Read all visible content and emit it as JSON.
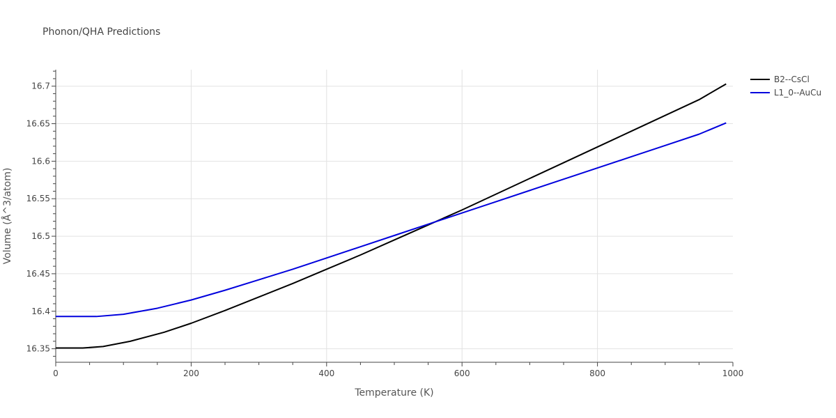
{
  "chart_data": {
    "type": "line",
    "title": "Phonon/QHA Predictions",
    "xlabel": "Temperature (K)",
    "ylabel": "Volume (Å^3/atom)",
    "xlim": [
      0,
      1000
    ],
    "ylim": [
      16.332,
      16.722
    ],
    "xticks": [
      0,
      200,
      400,
      600,
      800,
      1000
    ],
    "xtick_labels": [
      "0",
      "200",
      "400",
      "600",
      "800",
      "1000"
    ],
    "yticks": [
      16.35,
      16.4,
      16.45,
      16.5,
      16.55,
      16.6,
      16.65,
      16.7
    ],
    "ytick_labels": [
      "16.35",
      "16.4",
      "16.45",
      "16.5",
      "16.55",
      "16.6",
      "16.65",
      "16.7"
    ],
    "grid": true,
    "legend_position": "top-right",
    "series": [
      {
        "name": "B2--CsCl",
        "color": "#000000",
        "x": [
          0,
          40,
          70,
          110,
          160,
          200,
          250,
          300,
          350,
          400,
          450,
          500,
          550,
          600,
          650,
          700,
          750,
          800,
          850,
          900,
          950,
          990
        ],
        "y": [
          16.351,
          16.351,
          16.353,
          16.36,
          16.372,
          16.384,
          16.401,
          16.419,
          16.437,
          16.456,
          16.475,
          16.495,
          16.515,
          16.535,
          16.556,
          16.577,
          16.598,
          16.619,
          16.64,
          16.661,
          16.682,
          16.703
        ]
      },
      {
        "name": "L1_0--AuCu",
        "color": "#0000dd",
        "x": [
          0,
          60,
          100,
          150,
          200,
          250,
          300,
          350,
          400,
          450,
          500,
          550,
          600,
          650,
          700,
          750,
          800,
          850,
          900,
          950,
          990
        ],
        "y": [
          16.393,
          16.393,
          16.396,
          16.404,
          16.415,
          16.428,
          16.442,
          16.456,
          16.471,
          16.486,
          16.501,
          16.516,
          16.531,
          16.546,
          16.561,
          16.576,
          16.591,
          16.606,
          16.621,
          16.636,
          16.651
        ]
      }
    ]
  }
}
